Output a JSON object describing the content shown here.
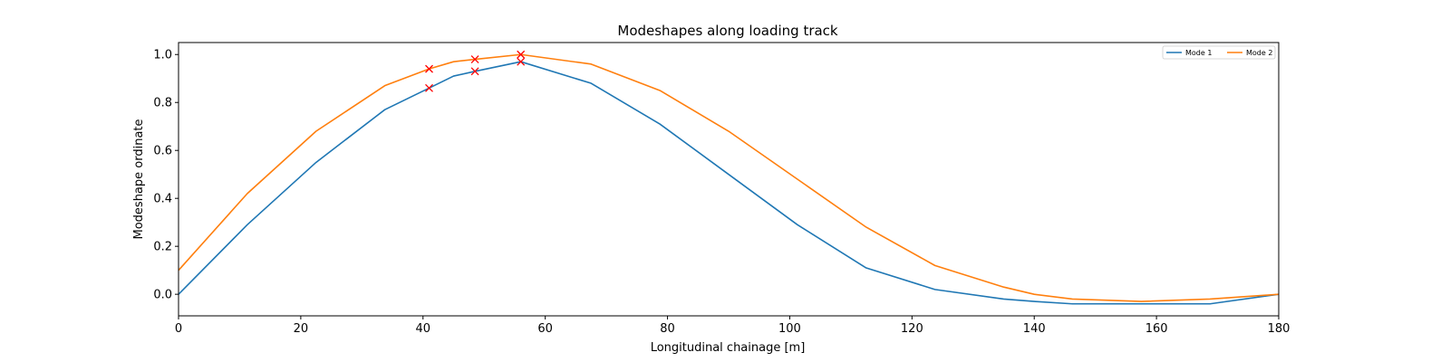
{
  "chart_data": {
    "type": "line",
    "title": "Modeshapes along loading track",
    "xlabel": "Longitudinal chainage [m]",
    "ylabel": "Modeshape ordinate",
    "xlim": [
      0,
      180
    ],
    "ylim": [
      -0.09,
      1.05
    ],
    "xticks": [
      0,
      20,
      40,
      60,
      80,
      100,
      120,
      140,
      160,
      180
    ],
    "yticks": [
      0.0,
      0.2,
      0.4,
      0.6,
      0.8,
      1.0
    ],
    "xtick_labels": [
      "0",
      "20",
      "40",
      "60",
      "80",
      "100",
      "120",
      "140",
      "160",
      "180"
    ],
    "ytick_labels": [
      "0.0",
      "0.2",
      "0.4",
      "0.6",
      "0.8",
      "1.0"
    ],
    "grid": false,
    "legend_position": "top-right",
    "series": [
      {
        "name": "Mode 1",
        "color": "#1f77b4",
        "x": [
          0,
          11.25,
          22.5,
          33.75,
          41,
          45,
          48.5,
          56,
          67.5,
          78.75,
          90,
          101.25,
          112.5,
          123.75,
          135,
          140,
          146.25,
          157.5,
          168.75,
          180
        ],
        "y": [
          0.0,
          0.29,
          0.55,
          0.77,
          0.86,
          0.91,
          0.93,
          0.97,
          0.88,
          0.71,
          0.5,
          0.29,
          0.11,
          0.02,
          -0.02,
          -0.03,
          -0.04,
          -0.04,
          -0.04,
          0.0
        ]
      },
      {
        "name": "Mode 2",
        "color": "#ff7f0e",
        "x": [
          0,
          11.25,
          22.5,
          33.75,
          41,
          45,
          48.5,
          56,
          67.5,
          78.75,
          90,
          101.25,
          112.5,
          123.75,
          135,
          140,
          146.25,
          157.5,
          168.75,
          180
        ],
        "y": [
          0.1,
          0.42,
          0.68,
          0.87,
          0.94,
          0.97,
          0.98,
          1.0,
          0.96,
          0.85,
          0.68,
          0.48,
          0.28,
          0.12,
          0.03,
          0.0,
          -0.02,
          -0.03,
          -0.02,
          0.0
        ]
      }
    ],
    "markers": {
      "color": "#ff0000",
      "symbol": "x",
      "points": [
        {
          "x": 41,
          "y": 0.86
        },
        {
          "x": 48.5,
          "y": 0.93
        },
        {
          "x": 56,
          "y": 0.97
        },
        {
          "x": 41,
          "y": 0.94
        },
        {
          "x": 48.5,
          "y": 0.98
        },
        {
          "x": 56,
          "y": 1.0
        }
      ]
    }
  }
}
